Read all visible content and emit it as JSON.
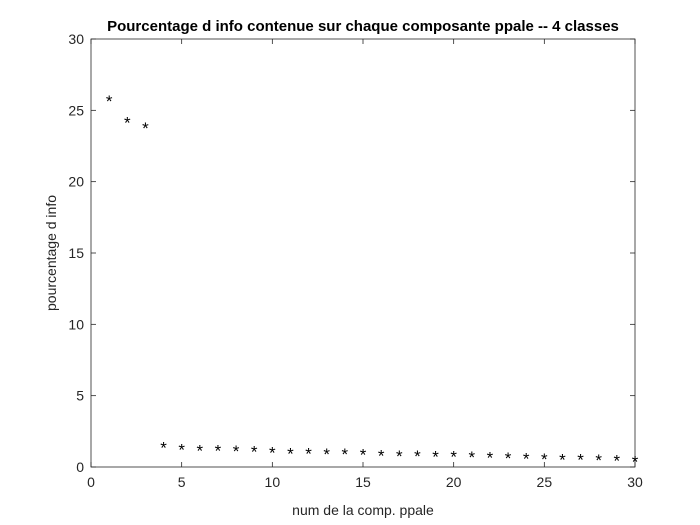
{
  "chart_data": {
    "type": "scatter",
    "title": "Pourcentage d info contenue sur chaque composante ppale -- 4 classes",
    "xlabel": "num de la comp. ppale",
    "ylabel": "pourcentage d info",
    "xlim": [
      0,
      30
    ],
    "ylim": [
      0,
      30
    ],
    "xticks": [
      0,
      5,
      10,
      15,
      20,
      25,
      30
    ],
    "yticks": [
      0,
      5,
      10,
      15,
      20,
      25,
      30
    ],
    "marker": "*",
    "marker_color": "#000000",
    "grid": false,
    "x": [
      1,
      2,
      3,
      4,
      5,
      6,
      7,
      8,
      9,
      10,
      11,
      12,
      13,
      14,
      15,
      16,
      17,
      18,
      19,
      20,
      21,
      22,
      23,
      24,
      25,
      26,
      27,
      28,
      29,
      30
    ],
    "y": [
      25.8,
      24.3,
      23.9,
      1.5,
      1.35,
      1.3,
      1.28,
      1.25,
      1.22,
      1.15,
      1.1,
      1.08,
      1.06,
      1.04,
      1.0,
      0.95,
      0.92,
      0.9,
      0.88,
      0.86,
      0.84,
      0.82,
      0.78,
      0.74,
      0.7,
      0.68,
      0.66,
      0.62,
      0.58,
      0.52
    ]
  }
}
